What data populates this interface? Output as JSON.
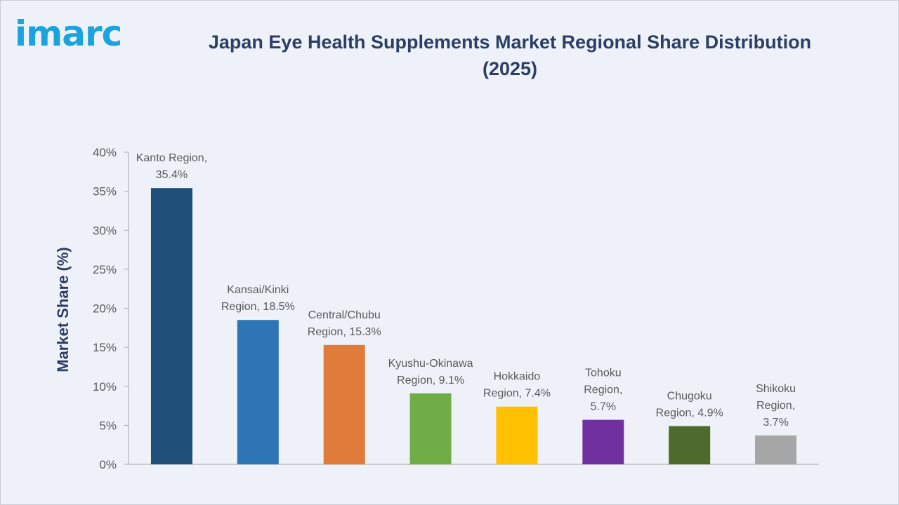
{
  "header": {
    "logo_text": "imarc",
    "title": "Japan Eye Health Supplements Market Regional Share Distribution (2025)"
  },
  "chart_data": {
    "type": "bar",
    "title": "Japan Eye Health Supplements Market Regional Share Distribution (2025)",
    "xlabel": "",
    "ylabel": "Market Share (%)",
    "ylim": [
      0,
      40
    ],
    "yticks": [
      0,
      5,
      10,
      15,
      20,
      25,
      30,
      35,
      40
    ],
    "ytick_labels": [
      "0%",
      "5%",
      "10%",
      "15%",
      "20%",
      "25%",
      "30%",
      "35%",
      "40%"
    ],
    "grid": false,
    "legend": "none",
    "categories": [
      "Kanto Region",
      "Kansai/Kinki Region",
      "Central/Chubu Region",
      "Kyushu-Okinawa Region",
      "Hokkaido Region",
      "Tohoku Region",
      "Chugoku Region",
      "Shikoku Region"
    ],
    "values": [
      35.4,
      18.5,
      15.3,
      9.1,
      7.4,
      5.7,
      4.9,
      3.7
    ],
    "data_labels": [
      [
        "Kanto Region,",
        "35.4%"
      ],
      [
        "Kansai/Kinki",
        "Region, 18.5%"
      ],
      [
        "Central/Chubu",
        "Region, 15.3%"
      ],
      [
        "Kyushu-Okinawa",
        "Region, 9.1%"
      ],
      [
        "Hokkaido",
        "Region, 7.4%"
      ],
      [
        "Tohoku",
        "Region,",
        "5.7%"
      ],
      [
        "Chugoku",
        "Region, 4.9%"
      ],
      [
        "Shikoku",
        "Region,",
        "3.7%"
      ]
    ],
    "colors": [
      "#1f4e79",
      "#2e75b6",
      "#e07b39",
      "#70ad47",
      "#ffc000",
      "#7030a0",
      "#4e6b2d",
      "#a6a6a6"
    ],
    "axis_color": "#a6a6a6"
  }
}
